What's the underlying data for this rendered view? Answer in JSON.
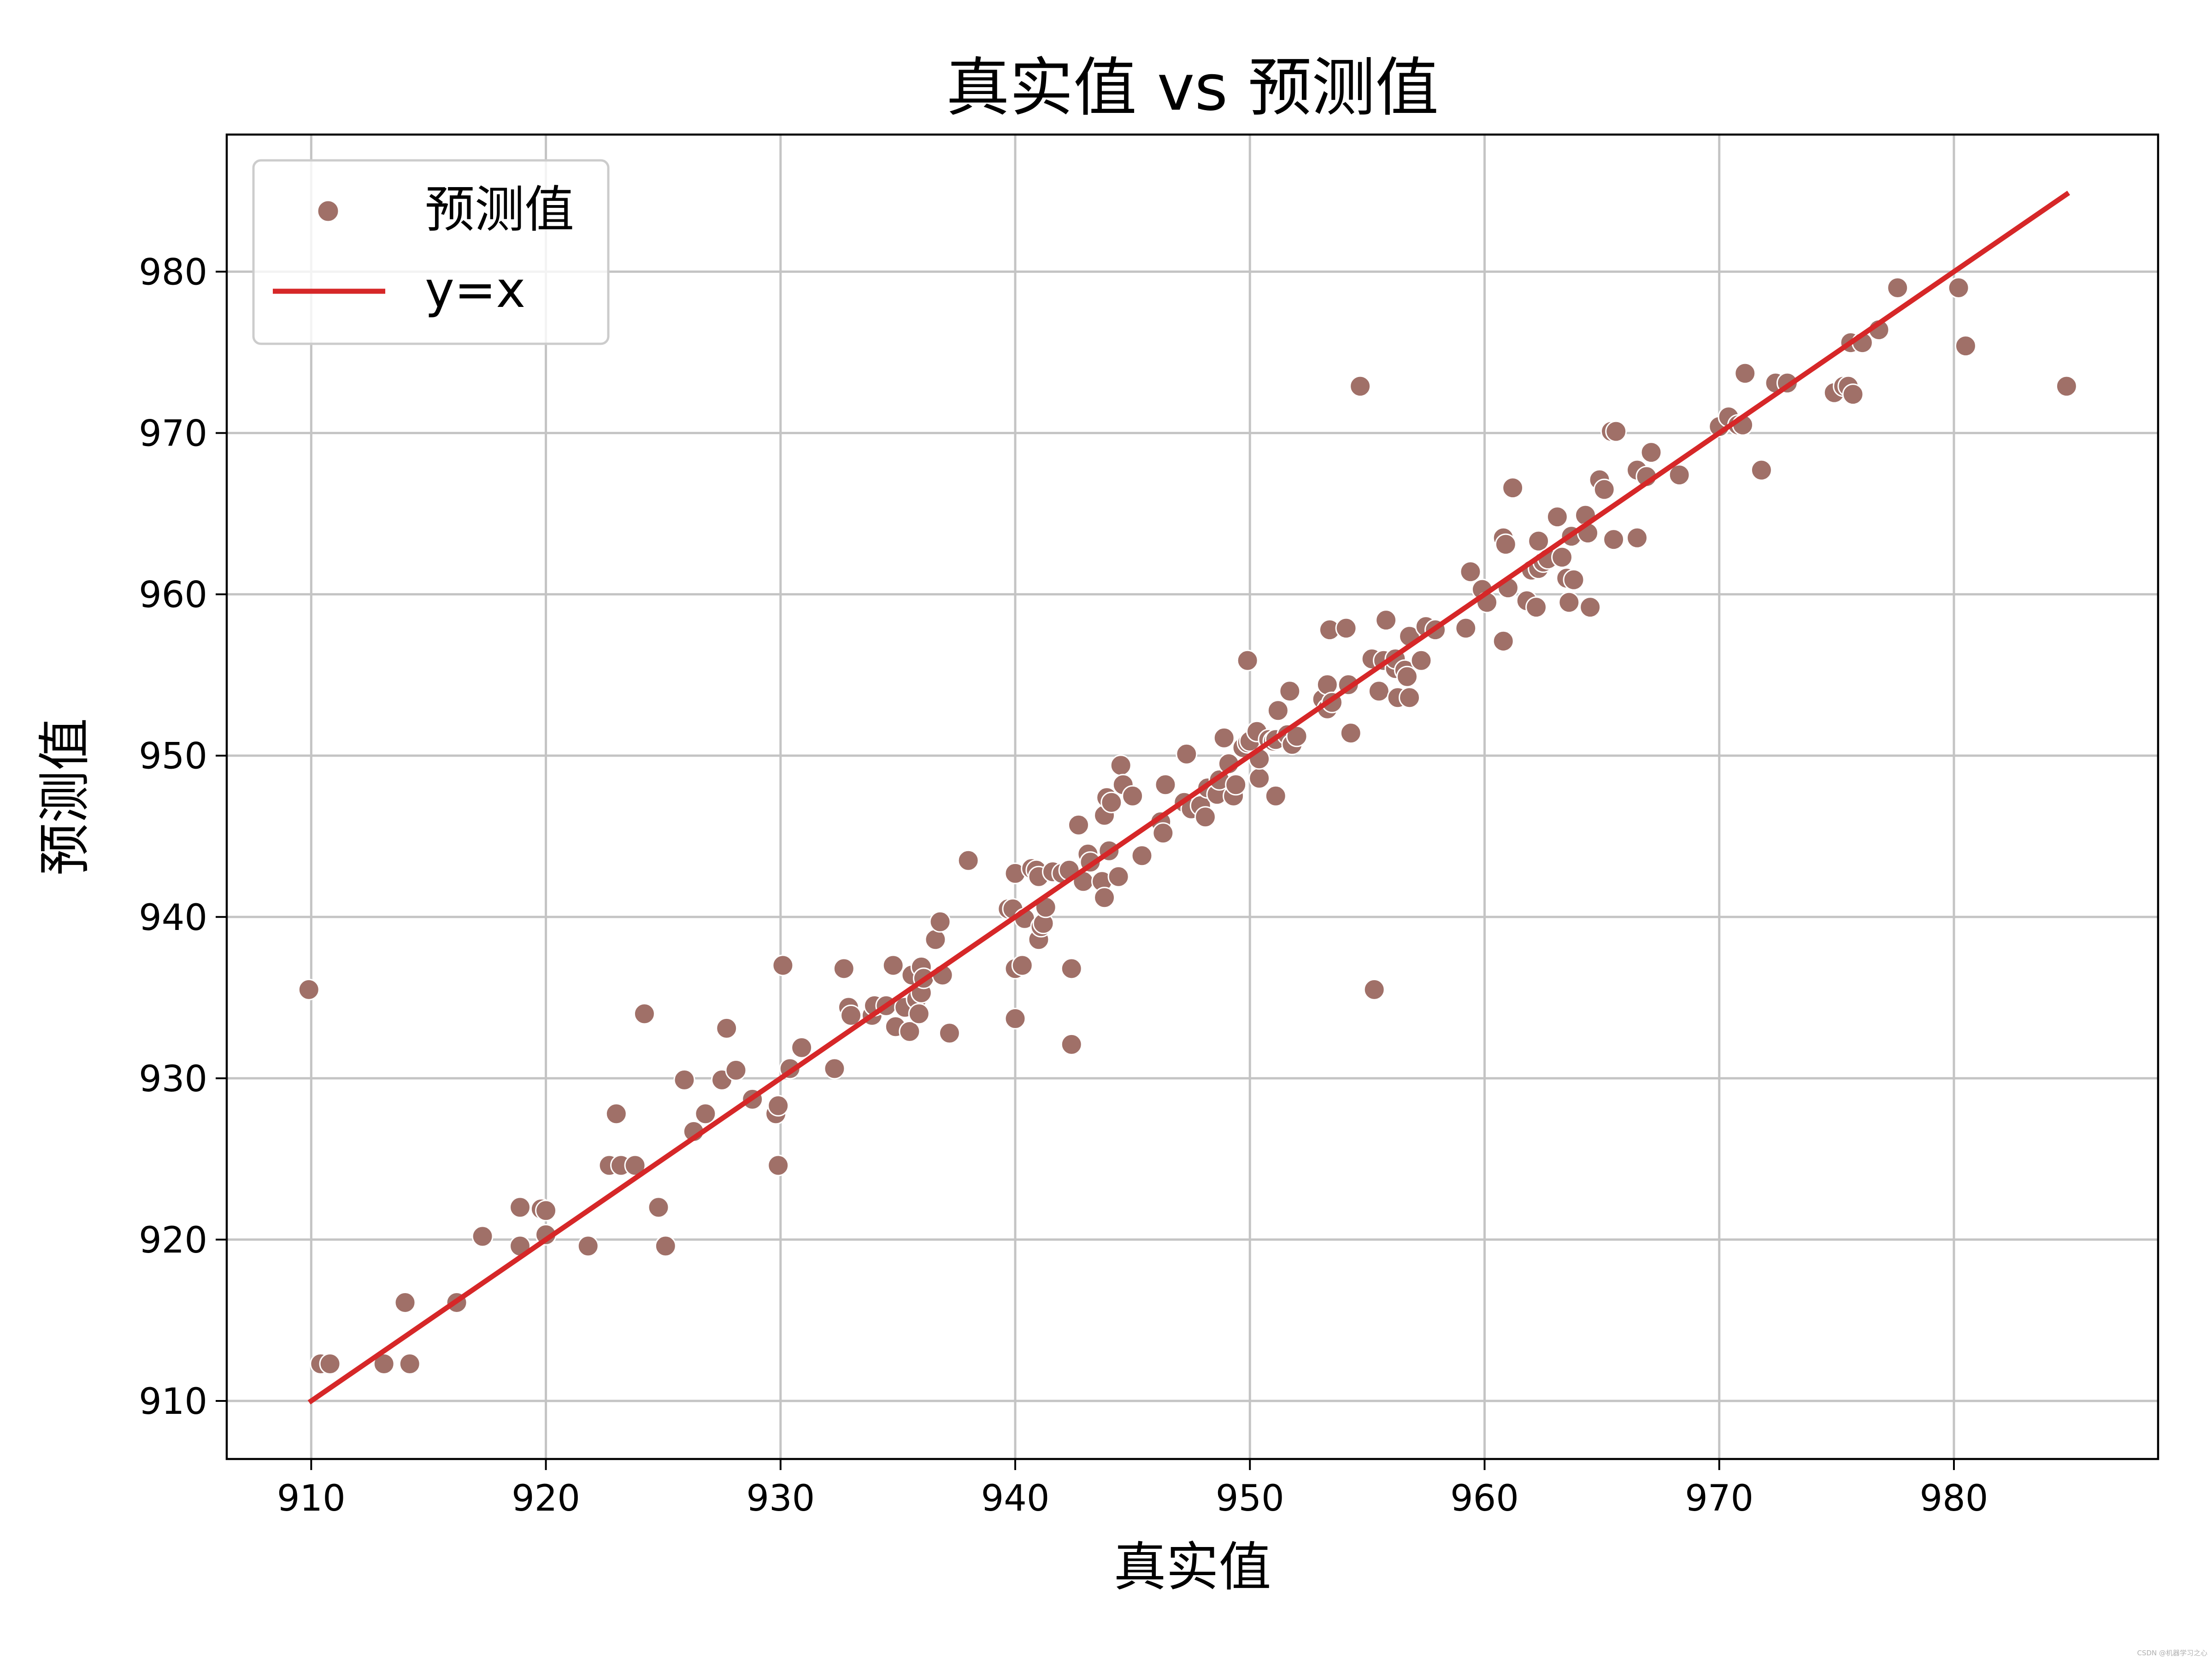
{
  "chart_data": {
    "type": "scatter",
    "title": "真实值 vs 预测值",
    "xlabel": "真实值",
    "ylabel": "预测值",
    "xlim": [
      906.4,
      988.7
    ],
    "ylim": [
      906.4,
      988.5
    ],
    "xticks": [
      910,
      920,
      930,
      940,
      950,
      960,
      970,
      980
    ],
    "yticks": [
      910,
      920,
      930,
      940,
      950,
      960,
      970,
      980
    ],
    "grid": true,
    "legend": {
      "placement": "top-left",
      "entries": [
        {
          "label": "预测值",
          "kind": "marker"
        },
        {
          "label": "y=x",
          "kind": "line"
        }
      ]
    },
    "colors": {
      "points": "#a07068",
      "line": "#d62728",
      "grid": "#c4c4c4"
    },
    "reference_line": {
      "name": "y=x",
      "from": [
        910,
        910
      ],
      "to": [
        984.8,
        984.8
      ]
    },
    "series": [
      {
        "name": "预测值",
        "points": [
          [
            909.9,
            935.5
          ],
          [
            910.4,
            912.3
          ],
          [
            910.8,
            912.3
          ],
          [
            913.1,
            912.3
          ],
          [
            914.0,
            916.1
          ],
          [
            914.2,
            912.3
          ],
          [
            916.2,
            916.1
          ],
          [
            917.3,
            920.2
          ],
          [
            918.9,
            919.6
          ],
          [
            918.9,
            922.0
          ],
          [
            919.8,
            921.9
          ],
          [
            920.0,
            920.3
          ],
          [
            920.0,
            921.8
          ],
          [
            921.8,
            919.6
          ],
          [
            922.7,
            924.6
          ],
          [
            923.0,
            927.8
          ],
          [
            923.2,
            924.6
          ],
          [
            923.8,
            924.6
          ],
          [
            924.2,
            934.0
          ],
          [
            924.8,
            922.0
          ],
          [
            925.1,
            919.6
          ],
          [
            925.9,
            929.9
          ],
          [
            926.3,
            926.7
          ],
          [
            926.8,
            927.8
          ],
          [
            927.5,
            929.9
          ],
          [
            927.7,
            933.1
          ],
          [
            928.1,
            930.5
          ],
          [
            928.8,
            928.7
          ],
          [
            929.8,
            927.8
          ],
          [
            929.9,
            928.3
          ],
          [
            929.9,
            924.6
          ],
          [
            930.1,
            937.0
          ],
          [
            930.4,
            930.6
          ],
          [
            930.9,
            931.9
          ],
          [
            932.3,
            930.6
          ],
          [
            932.7,
            936.8
          ],
          [
            932.9,
            934.4
          ],
          [
            933.0,
            933.9
          ],
          [
            933.9,
            933.9
          ],
          [
            934.0,
            934.5
          ],
          [
            934.5,
            934.5
          ],
          [
            934.8,
            937.0
          ],
          [
            934.9,
            933.2
          ],
          [
            935.3,
            934.4
          ],
          [
            935.5,
            932.9
          ],
          [
            935.6,
            936.4
          ],
          [
            935.8,
            934.9
          ],
          [
            935.9,
            934.0
          ],
          [
            936.0,
            936.9
          ],
          [
            936.0,
            935.3
          ],
          [
            936.1,
            936.2
          ],
          [
            936.6,
            938.6
          ],
          [
            936.8,
            939.7
          ],
          [
            936.9,
            936.4
          ],
          [
            937.2,
            932.8
          ],
          [
            938.0,
            943.5
          ],
          [
            939.7,
            940.5
          ],
          [
            939.9,
            940.5
          ],
          [
            940.0,
            942.7
          ],
          [
            940.0,
            936.8
          ],
          [
            940.0,
            933.7
          ],
          [
            940.3,
            937.0
          ],
          [
            940.4,
            939.9
          ],
          [
            940.7,
            943.0
          ],
          [
            940.9,
            942.9
          ],
          [
            941.0,
            942.5
          ],
          [
            941.0,
            938.6
          ],
          [
            941.1,
            939.4
          ],
          [
            941.2,
            939.6
          ],
          [
            941.3,
            940.6
          ],
          [
            941.6,
            942.8
          ],
          [
            942.0,
            942.7
          ],
          [
            942.3,
            942.9
          ],
          [
            942.4,
            936.8
          ],
          [
            942.4,
            932.1
          ],
          [
            942.7,
            945.7
          ],
          [
            942.9,
            942.2
          ],
          [
            943.1,
            943.9
          ],
          [
            943.2,
            943.4
          ],
          [
            943.7,
            942.2
          ],
          [
            943.8,
            946.3
          ],
          [
            943.8,
            941.2
          ],
          [
            943.9,
            947.4
          ],
          [
            944.0,
            944.1
          ],
          [
            944.1,
            947.1
          ],
          [
            944.4,
            942.5
          ],
          [
            944.5,
            949.4
          ],
          [
            944.6,
            948.2
          ],
          [
            945.0,
            947.5
          ],
          [
            945.4,
            943.8
          ],
          [
            946.2,
            945.9
          ],
          [
            946.3,
            945.2
          ],
          [
            946.4,
            948.2
          ],
          [
            947.2,
            947.1
          ],
          [
            947.3,
            950.1
          ],
          [
            947.5,
            946.7
          ],
          [
            947.9,
            946.9
          ],
          [
            948.1,
            946.2
          ],
          [
            948.2,
            948.0
          ],
          [
            948.6,
            947.6
          ],
          [
            948.7,
            948.5
          ],
          [
            948.9,
            951.1
          ],
          [
            949.1,
            949.5
          ],
          [
            949.3,
            947.5
          ],
          [
            949.4,
            948.2
          ],
          [
            949.7,
            950.5
          ],
          [
            949.9,
            955.9
          ],
          [
            949.9,
            950.8
          ],
          [
            950.0,
            950.9
          ],
          [
            950.3,
            951.5
          ],
          [
            950.4,
            948.6
          ],
          [
            950.4,
            949.8
          ],
          [
            950.8,
            951.0
          ],
          [
            951.0,
            950.9
          ],
          [
            951.1,
            951.0
          ],
          [
            951.1,
            947.5
          ],
          [
            951.2,
            952.8
          ],
          [
            951.6,
            951.3
          ],
          [
            951.7,
            954.0
          ],
          [
            951.8,
            950.7
          ],
          [
            952.0,
            951.2
          ],
          [
            953.1,
            953.5
          ],
          [
            953.3,
            952.9
          ],
          [
            953.3,
            954.4
          ],
          [
            953.4,
            957.8
          ],
          [
            953.5,
            953.3
          ],
          [
            954.1,
            957.9
          ],
          [
            954.2,
            954.4
          ],
          [
            954.3,
            951.4
          ],
          [
            954.7,
            972.9
          ],
          [
            955.2,
            956.0
          ],
          [
            955.3,
            935.5
          ],
          [
            955.5,
            954.0
          ],
          [
            955.7,
            955.9
          ],
          [
            955.8,
            958.4
          ],
          [
            956.2,
            955.4
          ],
          [
            956.2,
            956.0
          ],
          [
            956.3,
            953.6
          ],
          [
            956.6,
            955.3
          ],
          [
            956.7,
            954.9
          ],
          [
            956.8,
            953.6
          ],
          [
            956.8,
            957.4
          ],
          [
            957.3,
            955.9
          ],
          [
            957.5,
            958.0
          ],
          [
            957.9,
            957.8
          ],
          [
            959.2,
            957.9
          ],
          [
            959.4,
            961.4
          ],
          [
            959.9,
            960.3
          ],
          [
            960.1,
            959.5
          ],
          [
            960.8,
            963.5
          ],
          [
            960.8,
            957.1
          ],
          [
            960.9,
            963.1
          ],
          [
            961.0,
            960.4
          ],
          [
            961.2,
            966.6
          ],
          [
            961.8,
            959.6
          ],
          [
            962.0,
            961.5
          ],
          [
            962.2,
            959.2
          ],
          [
            962.3,
            961.6
          ],
          [
            962.3,
            963.3
          ],
          [
            962.5,
            962.0
          ],
          [
            962.7,
            962.2
          ],
          [
            963.1,
            964.8
          ],
          [
            963.3,
            962.3
          ],
          [
            963.5,
            961.0
          ],
          [
            963.6,
            959.5
          ],
          [
            963.7,
            963.6
          ],
          [
            963.8,
            960.9
          ],
          [
            964.3,
            964.9
          ],
          [
            964.4,
            963.8
          ],
          [
            964.5,
            959.2
          ],
          [
            964.9,
            967.1
          ],
          [
            965.1,
            966.5
          ],
          [
            965.4,
            970.1
          ],
          [
            965.5,
            963.4
          ],
          [
            965.6,
            970.1
          ],
          [
            966.5,
            967.7
          ],
          [
            966.5,
            963.5
          ],
          [
            966.9,
            967.3
          ],
          [
            967.1,
            968.8
          ],
          [
            968.3,
            967.4
          ],
          [
            970.0,
            970.4
          ],
          [
            970.4,
            971.0
          ],
          [
            970.8,
            970.5
          ],
          [
            971.0,
            970.5
          ],
          [
            971.1,
            973.7
          ],
          [
            971.8,
            967.7
          ],
          [
            972.4,
            973.1
          ],
          [
            972.9,
            973.1
          ],
          [
            974.9,
            972.5
          ],
          [
            975.3,
            972.9
          ],
          [
            975.5,
            972.9
          ],
          [
            975.6,
            975.6
          ],
          [
            975.7,
            972.4
          ],
          [
            976.1,
            975.6
          ],
          [
            976.8,
            976.4
          ],
          [
            977.6,
            979.0
          ],
          [
            980.2,
            979.0
          ],
          [
            980.5,
            975.4
          ],
          [
            984.8,
            972.9
          ]
        ]
      }
    ]
  },
  "watermark": "CSDN @机器学习之心"
}
